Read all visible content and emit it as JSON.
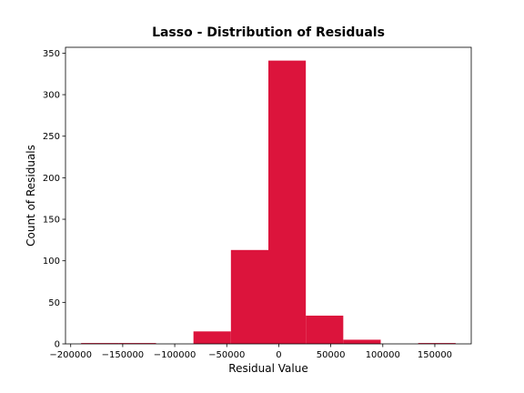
{
  "chart_data": {
    "type": "bar",
    "title": "Lasso - Distribution of Residuals",
    "xlabel": "Residual Value",
    "ylabel": "Count of Residuals",
    "xlim": [
      -205000,
      185000
    ],
    "ylim": [
      0,
      357
    ],
    "grid": false,
    "bar_color": "#dc143c",
    "bins": [
      {
        "x0": -190000,
        "x1": -154000,
        "count": 1
      },
      {
        "x0": -154000,
        "x1": -118000,
        "count": 1
      },
      {
        "x0": -118000,
        "x1": -82000,
        "count": 0
      },
      {
        "x0": -82000,
        "x1": -46000,
        "count": 15
      },
      {
        "x0": -46000,
        "x1": -10000,
        "count": 113
      },
      {
        "x0": -10000,
        "x1": 26000,
        "count": 341
      },
      {
        "x0": 26000,
        "x1": 62000,
        "count": 34
      },
      {
        "x0": 62000,
        "x1": 98000,
        "count": 5
      },
      {
        "x0": 98000,
        "x1": 134000,
        "count": 0
      },
      {
        "x0": 134000,
        "x1": 170000,
        "count": 1
      }
    ],
    "x_ticks": [
      {
        "value": -200000,
        "label": "−200000"
      },
      {
        "value": -150000,
        "label": "−150000"
      },
      {
        "value": -100000,
        "label": "−100000"
      },
      {
        "value": -50000,
        "label": "−50000"
      },
      {
        "value": 0,
        "label": "0"
      },
      {
        "value": 50000,
        "label": "50000"
      },
      {
        "value": 100000,
        "label": "100000"
      },
      {
        "value": 150000,
        "label": "150000"
      }
    ],
    "y_ticks": [
      {
        "value": 0,
        "label": "0"
      },
      {
        "value": 50,
        "label": "50"
      },
      {
        "value": 100,
        "label": "100"
      },
      {
        "value": 150,
        "label": "150"
      },
      {
        "value": 200,
        "label": "200"
      },
      {
        "value": 250,
        "label": "250"
      },
      {
        "value": 300,
        "label": "300"
      },
      {
        "value": 350,
        "label": "350"
      }
    ]
  }
}
